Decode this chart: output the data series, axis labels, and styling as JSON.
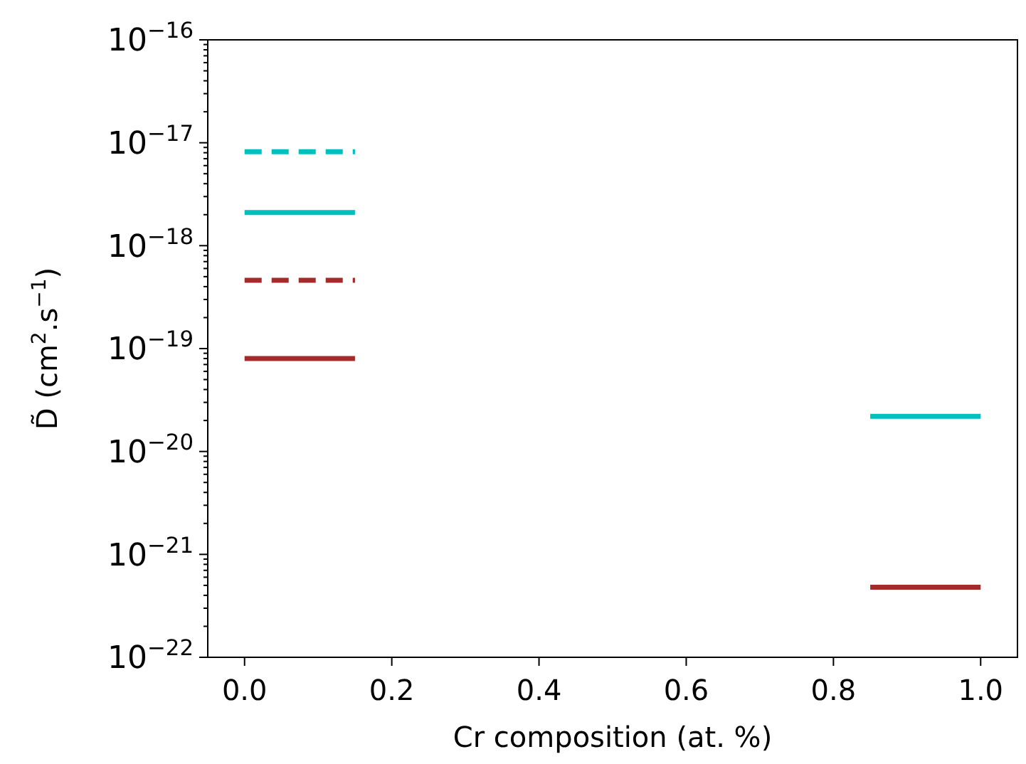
{
  "chart_data": {
    "type": "line",
    "xlabel": "Cr composition (at. %)",
    "ylabel": "D̃ (cm$^{2}$.s$^{−1}$)",
    "log": "y",
    "xlim": [
      -0.05,
      1.05
    ],
    "xticks": [
      {
        "value": 0,
        "label": "0.0"
      },
      {
        "value": 0.2,
        "label": "0.2"
      },
      {
        "value": 0.4,
        "label": "0.4"
      },
      {
        "value": 0.6,
        "label": "0.6"
      },
      {
        "value": 0.8,
        "label": "0.8"
      },
      {
        "value": 1,
        "label": "1.0"
      }
    ],
    "ylim": [
      1e-22,
      1e-16
    ],
    "yticks": [
      {
        "value": 1e-22,
        "label": "10$^{−22}$"
      },
      {
        "value": 1e-21,
        "label": "10$^{−21}$"
      },
      {
        "value": 1e-20,
        "label": "10$^{−20}$"
      },
      {
        "value": 1e-19,
        "label": "10$^{−19}$"
      },
      {
        "value": 1e-18,
        "label": "10$^{−18}$"
      },
      {
        "value": 1e-17,
        "label": "10$^{−17}$"
      },
      {
        "value": 1e-16,
        "label": "10$^{−16}$"
      },
      {
        "value": 2e-22,
        "label": null
      },
      {
        "value": 3e-22,
        "label": null
      },
      {
        "value": 4e-22,
        "label": null
      },
      {
        "value": 5e-22,
        "label": null
      },
      {
        "value": 6e-22,
        "label": null
      },
      {
        "value": 7e-22,
        "label": null
      },
      {
        "value": 8e-22,
        "label": null
      },
      {
        "value": 9e-22,
        "label": null
      },
      {
        "value": 2e-21,
        "label": null
      },
      {
        "value": 3e-21,
        "label": null
      },
      {
        "value": 4e-21,
        "label": null
      },
      {
        "value": 5e-21,
        "label": null
      },
      {
        "value": 6e-21,
        "label": null
      },
      {
        "value": 7e-21,
        "label": null
      },
      {
        "value": 8e-21,
        "label": null
      },
      {
        "value": 9e-21,
        "label": null
      },
      {
        "value": 2e-20,
        "label": null
      },
      {
        "value": 3e-20,
        "label": null
      },
      {
        "value": 4e-20,
        "label": null
      },
      {
        "value": 5e-20,
        "label": null
      },
      {
        "value": 6e-20,
        "label": null
      },
      {
        "value": 7e-20,
        "label": null
      },
      {
        "value": 8e-20,
        "label": null
      },
      {
        "value": 9e-20,
        "label": null
      },
      {
        "value": 2e-19,
        "label": null
      },
      {
        "value": 3e-19,
        "label": null
      },
      {
        "value": 4e-19,
        "label": null
      },
      {
        "value": 5e-19,
        "label": null
      },
      {
        "value": 6e-19,
        "label": null
      },
      {
        "value": 7e-19,
        "label": null
      },
      {
        "value": 8e-19,
        "label": null
      },
      {
        "value": 9e-19,
        "label": null
      },
      {
        "value": 2e-18,
        "label": null
      },
      {
        "value": 3e-18,
        "label": null
      },
      {
        "value": 4e-18,
        "label": null
      },
      {
        "value": 5e-18,
        "label": null
      },
      {
        "value": 6e-18,
        "label": null
      },
      {
        "value": 7e-18,
        "label": null
      },
      {
        "value": 8e-18,
        "label": null
      },
      {
        "value": 9e-18,
        "label": null
      },
      {
        "value": 2e-17,
        "label": null
      },
      {
        "value": 3e-17,
        "label": null
      },
      {
        "value": 4e-17,
        "label": null
      },
      {
        "value": 5e-17,
        "label": null
      },
      {
        "value": 6e-17,
        "label": null
      },
      {
        "value": 7e-17,
        "label": null
      },
      {
        "value": 8e-17,
        "label": null
      },
      {
        "value": 9e-17,
        "label": null
      }
    ],
    "grid": false,
    "marker": "none",
    "series": [
      {
        "color": "#00bfbf",
        "line_style": "dashed",
        "x": [
          0,
          0.15
        ],
        "values": [
          8.2e-18,
          8.2e-18
        ]
      },
      {
        "color": "#00bfbf",
        "line_style": "solid",
        "x": [
          0,
          0.15
        ],
        "values": [
          2.1e-18,
          2.1e-18
        ]
      },
      {
        "color": "#a52a2a",
        "line_style": "dashed",
        "x": [
          0,
          0.15
        ],
        "values": [
          4.6e-19,
          4.6e-19
        ]
      },
      {
        "color": "#a52a2a",
        "line_style": "solid",
        "x": [
          0,
          0.15
        ],
        "values": [
          8e-20,
          8e-20
        ]
      },
      {
        "color": "#00bfbf",
        "line_style": "solid",
        "x": [
          0.85,
          1
        ],
        "values": [
          2.2e-20,
          2.2e-20
        ]
      },
      {
        "color": "#a52a2a",
        "line_style": "solid",
        "x": [
          0.85,
          1
        ],
        "values": [
          4.8e-22,
          4.8e-22
        ]
      }
    ]
  }
}
